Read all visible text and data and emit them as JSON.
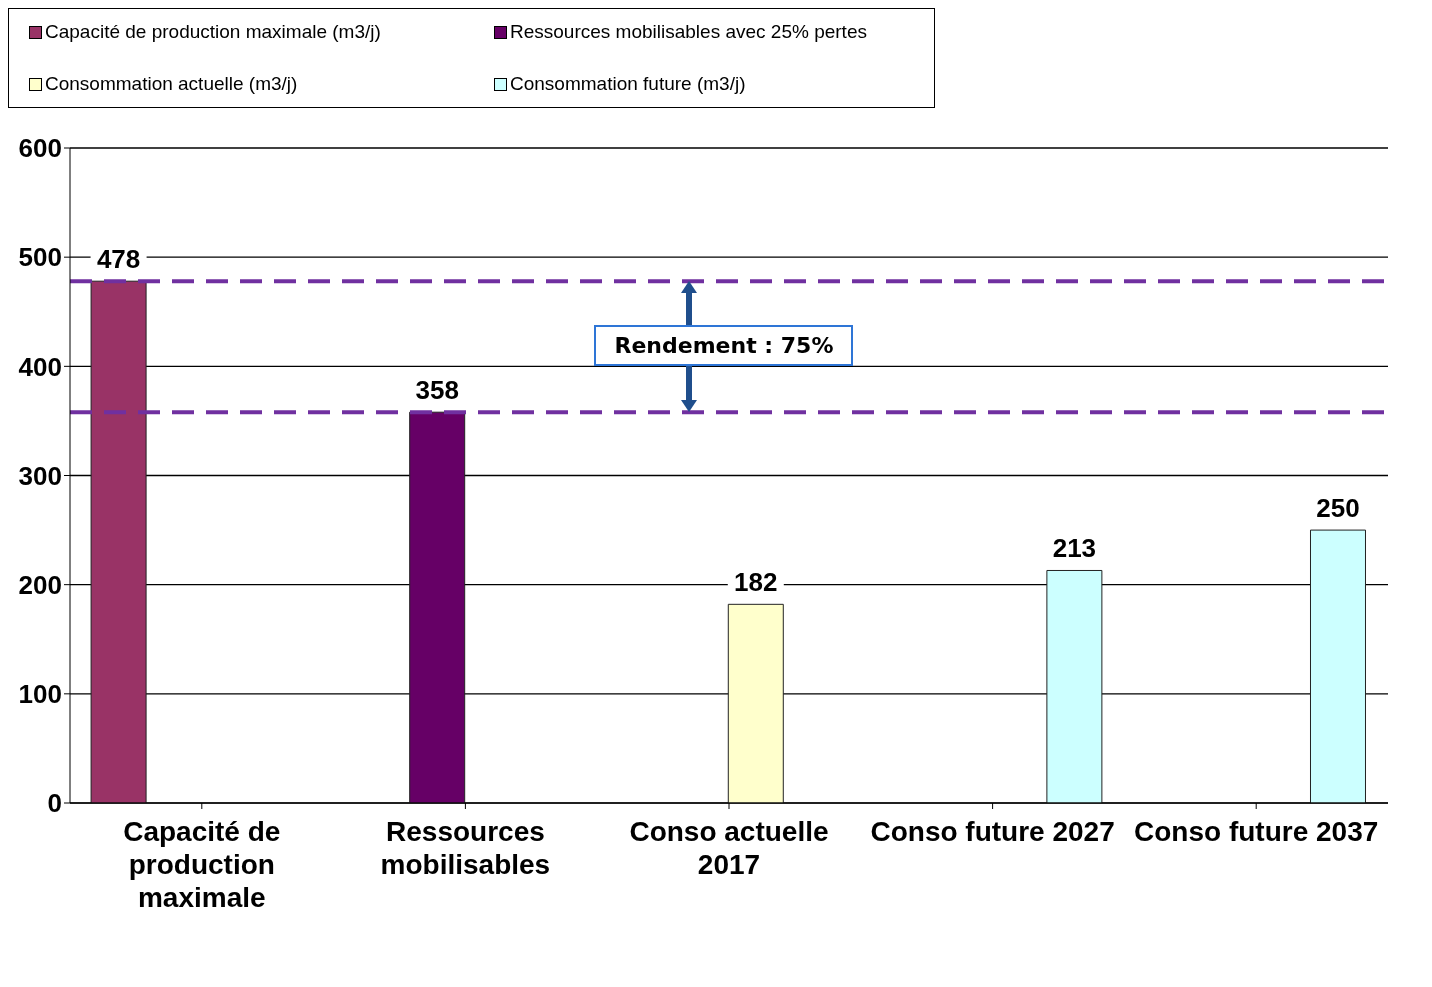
{
  "chart_data": {
    "type": "bar",
    "categories": [
      "Capacité de production maximale",
      "Ressources mobilisables",
      "Conso actuelle 2017",
      "Conso future 2027",
      "Conso future 2037"
    ],
    "series": [
      {
        "name": "Capacité de production maximale (m3/j)",
        "color": "#993366",
        "values": [
          478,
          null,
          null,
          null,
          null
        ]
      },
      {
        "name": "Ressources mobilisables avec 25% pertes",
        "color": "#660066",
        "values": [
          null,
          358,
          null,
          null,
          null
        ]
      },
      {
        "name": "Consommation actuelle (m3/j)",
        "color": "#ffffcc",
        "values": [
          null,
          null,
          182,
          null,
          null
        ]
      },
      {
        "name": "Consommation future (m3/j)",
        "color": "#ccffff",
        "values": [
          null,
          null,
          null,
          213,
          250
        ]
      }
    ],
    "ylim": [
      0,
      600
    ],
    "yticks": [
      0,
      100,
      200,
      300,
      400,
      500,
      600
    ],
    "grid": "y",
    "legend": "top left",
    "data_labels": true,
    "ref_lines": [
      {
        "axis": "y",
        "value": 478,
        "color": "#7030a0",
        "line_style": "dashed"
      },
      {
        "axis": "y",
        "value": 358,
        "color": "#7030a0",
        "line_style": "dashed"
      }
    ],
    "annotations": [
      "Rendement : 75%"
    ]
  }
}
